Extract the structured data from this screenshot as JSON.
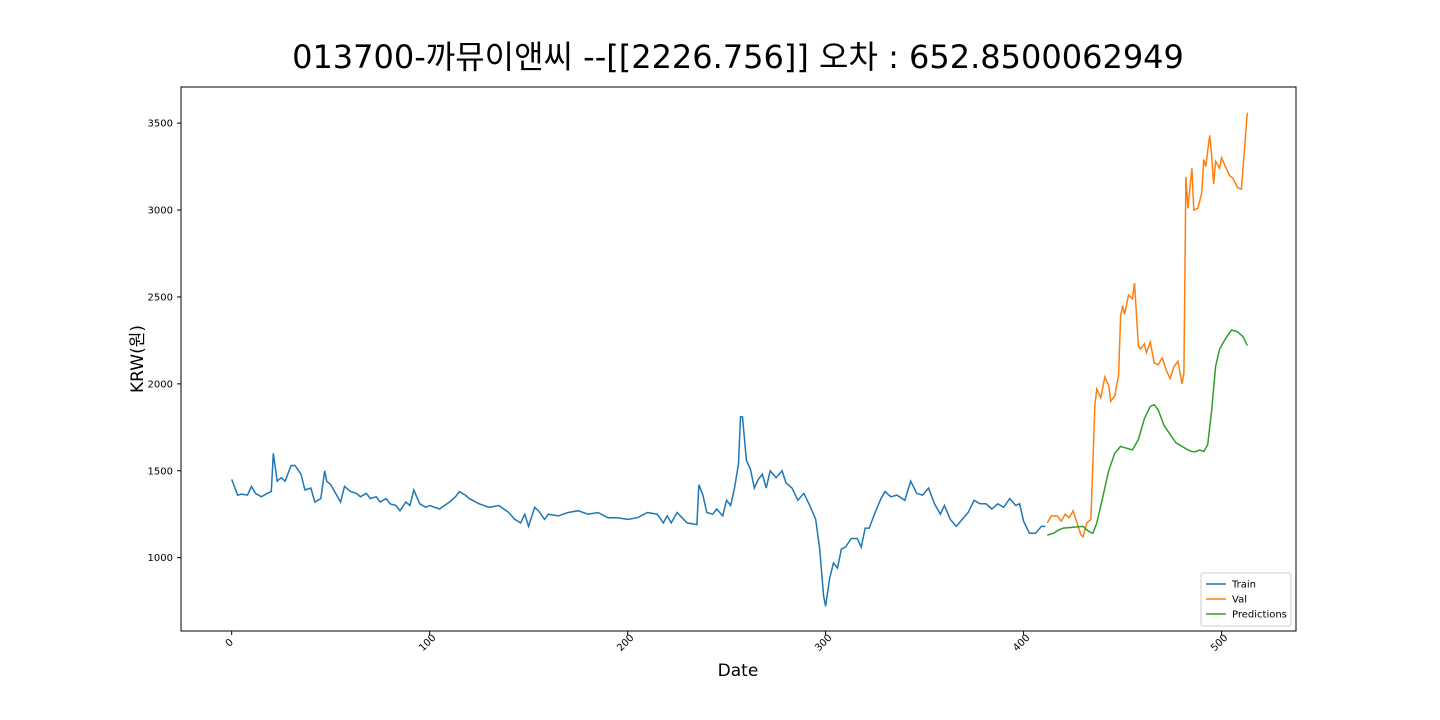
{
  "chart_data": {
    "type": "line",
    "title": "013700-까뮤이앤씨 --[[2226.756]] 오차 : 652.8500062949",
    "xlabel": "Date",
    "ylabel": "KRW(원)",
    "xlim": [
      -25.6,
      537.6
    ],
    "xticks": [
      0,
      100,
      200,
      300,
      400,
      500
    ],
    "ylim": [
      578,
      3708
    ],
    "yticks": [
      1000,
      1500,
      2000,
      2500,
      3000,
      3500
    ],
    "legend": "lower right",
    "series": [
      {
        "name": "Train",
        "color": "#1f77b4",
        "x": [
          0,
          3,
          5,
          8,
          10,
          12,
          15,
          18,
          20,
          21,
          23,
          25,
          27,
          30,
          32,
          35,
          37,
          40,
          42,
          45,
          47,
          48,
          50,
          52,
          55,
          57,
          60,
          63,
          65,
          68,
          70,
          73,
          75,
          78,
          80,
          83,
          85,
          88,
          90,
          92,
          95,
          98,
          100,
          105,
          110,
          113,
          115,
          118,
          120,
          125,
          130,
          135,
          140,
          143,
          146,
          148,
          150,
          153,
          155,
          158,
          160,
          165,
          170,
          175,
          180,
          185,
          190,
          195,
          200,
          205,
          210,
          215,
          218,
          220,
          222,
          225,
          230,
          235,
          236,
          238,
          240,
          243,
          245,
          248,
          250,
          252,
          254,
          256,
          257,
          258,
          260,
          262,
          264,
          266,
          268,
          270,
          272,
          275,
          278,
          280,
          283,
          286,
          289,
          292,
          295,
          297,
          299,
          300,
          302,
          304,
          306,
          308,
          310,
          313,
          316,
          318,
          320,
          322,
          325,
          328,
          330,
          333,
          336,
          340,
          343,
          346,
          349,
          352,
          355,
          358,
          360,
          363,
          366,
          369,
          372,
          375,
          378,
          381,
          384,
          387,
          390,
          393,
          396,
          398,
          400,
          403,
          406,
          409,
          411
        ],
        "values": [
          1450,
          1360,
          1365,
          1360,
          1410,
          1370,
          1350,
          1370,
          1380,
          1600,
          1440,
          1460,
          1440,
          1530,
          1530,
          1480,
          1390,
          1400,
          1320,
          1340,
          1500,
          1440,
          1420,
          1380,
          1320,
          1410,
          1380,
          1370,
          1350,
          1370,
          1340,
          1350,
          1320,
          1340,
          1310,
          1300,
          1270,
          1320,
          1300,
          1390,
          1310,
          1290,
          1300,
          1280,
          1320,
          1350,
          1380,
          1360,
          1340,
          1310,
          1290,
          1300,
          1260,
          1220,
          1200,
          1250,
          1180,
          1290,
          1270,
          1220,
          1250,
          1240,
          1260,
          1270,
          1250,
          1260,
          1230,
          1230,
          1220,
          1230,
          1260,
          1250,
          1200,
          1240,
          1200,
          1260,
          1200,
          1190,
          1420,
          1360,
          1260,
          1250,
          1280,
          1240,
          1330,
          1300,
          1400,
          1540,
          1810,
          1810,
          1560,
          1510,
          1400,
          1450,
          1480,
          1400,
          1500,
          1460,
          1500,
          1430,
          1400,
          1330,
          1370,
          1300,
          1220,
          1050,
          780,
          720,
          880,
          970,
          940,
          1050,
          1060,
          1110,
          1110,
          1060,
          1170,
          1170,
          1260,
          1340,
          1380,
          1350,
          1360,
          1330,
          1440,
          1370,
          1360,
          1400,
          1310,
          1250,
          1300,
          1220,
          1180,
          1220,
          1260,
          1330,
          1310,
          1310,
          1280,
          1310,
          1290,
          1340,
          1300,
          1310,
          1210,
          1140,
          1140,
          1180,
          1180
        ]
      },
      {
        "name": "Val",
        "color": "#ff7f0e",
        "x": [
          412,
          414,
          417,
          419,
          421,
          423,
          425,
          427,
          429,
          430,
          432,
          434,
          436,
          437,
          439,
          441,
          443,
          444,
          446,
          448,
          449,
          450,
          451,
          453,
          455,
          456,
          458,
          459,
          461,
          462,
          464,
          466,
          468,
          470,
          472,
          474,
          476,
          478,
          480,
          481,
          482,
          483,
          485,
          486,
          488,
          490,
          491,
          492,
          494,
          495,
          496,
          497,
          499,
          500,
          502,
          504,
          506,
          508,
          510,
          513
        ],
        "values": [
          1200,
          1240,
          1240,
          1210,
          1250,
          1230,
          1270,
          1200,
          1130,
          1120,
          1200,
          1220,
          1880,
          1970,
          1920,
          2040,
          1990,
          1900,
          1930,
          2050,
          2390,
          2450,
          2400,
          2510,
          2490,
          2580,
          2220,
          2200,
          2230,
          2180,
          2240,
          2120,
          2110,
          2150,
          2080,
          2030,
          2100,
          2130,
          2000,
          2060,
          3190,
          3010,
          3240,
          3000,
          3010,
          3100,
          3290,
          3250,
          3430,
          3310,
          3150,
          3280,
          3240,
          3300,
          3250,
          3200,
          3180,
          3130,
          3120,
          3560
        ]
      },
      {
        "name": "Predictions",
        "color": "#2ca02c",
        "x": [
          412,
          415,
          418,
          420,
          425,
          430,
          433,
          435,
          437,
          440,
          443,
          446,
          449,
          452,
          455,
          458,
          461,
          464,
          466,
          468,
          471,
          474,
          477,
          480,
          483,
          485,
          487,
          489,
          491,
          493,
          495,
          497,
          499,
          502,
          505,
          508,
          511,
          513
        ],
        "values": [
          1130,
          1140,
          1160,
          1170,
          1175,
          1180,
          1150,
          1140,
          1200,
          1350,
          1500,
          1600,
          1640,
          1630,
          1620,
          1680,
          1800,
          1870,
          1880,
          1850,
          1760,
          1710,
          1660,
          1640,
          1620,
          1610,
          1610,
          1620,
          1610,
          1650,
          1850,
          2100,
          2200,
          2260,
          2310,
          2300,
          2270,
          2220
        ]
      }
    ]
  }
}
